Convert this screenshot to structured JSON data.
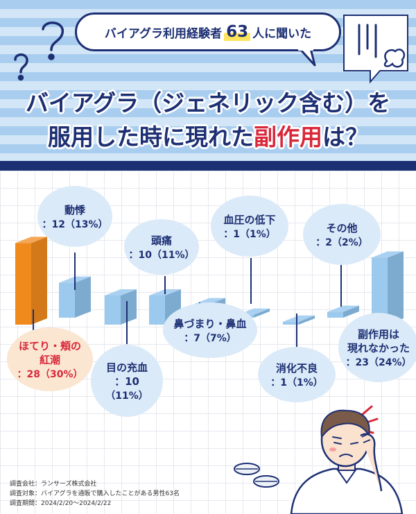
{
  "header": {
    "bubble_prefix": "バイアグラ利用経験者",
    "bubble_count": "63",
    "bubble_suffix": "人に聞いた",
    "headline_line1": "バイアグラ（ジェネリック含む）を",
    "headline_line2_prefix": "服用した時に現れた",
    "headline_line2_accent": "副作用",
    "headline_line2_suffix": "は？"
  },
  "chart_data": {
    "type": "bar",
    "categories": [
      "ほてり・頬の紅潮",
      "動悸",
      "目の充血",
      "頭痛",
      "鼻づまり・鼻血",
      "血圧の低下",
      "消化不良",
      "その他",
      "副作用は現れなかった"
    ],
    "values": [
      28,
      12,
      10,
      10,
      7,
      1,
      1,
      2,
      23
    ],
    "percents": [
      "30%",
      "13%",
      "11%",
      "11%",
      "7%",
      "1%",
      "1%",
      "2%",
      "24%"
    ],
    "labels": [
      {
        "lines": [
          "ほてり・頬の",
          "紅潮"
        ],
        "value_text": "：28（30%）"
      },
      {
        "lines": [
          "動悸"
        ],
        "value_text": "：12（13%）"
      },
      {
        "lines": [
          "目の充血",
          "：10"
        ],
        "value_text": "（11%）"
      },
      {
        "lines": [
          "頭痛"
        ],
        "value_text": "：10（11%）"
      },
      {
        "lines": [
          "鼻づまり・鼻血"
        ],
        "value_text": "：7（7%）"
      },
      {
        "lines": [
          "血圧の低下"
        ],
        "value_text": "：1（1%）"
      },
      {
        "lines": [
          "消化不良"
        ],
        "value_text": "：1（1%）"
      },
      {
        "lines": [
          "その他"
        ],
        "value_text": "：2（2%）"
      },
      {
        "lines": [
          "副作用は",
          "現れなかった"
        ],
        "value_text": "：23（24%）"
      }
    ],
    "colors": {
      "highlight": "#f08a1d",
      "bar": "#8ec2ec",
      "highlight_text": "#d8283a",
      "label_bubble": "#dbeaf8"
    }
  },
  "footer": {
    "company": "調査会社：ランサーズ株式会社",
    "target": "調査対象：バイアグラを通販で購入したことがある男性63名",
    "period": "調査期間：2024/2/20〜2024/2/22"
  },
  "colors": {
    "navy": "#1c2f73",
    "stripe_dark": "#a9cdee",
    "stripe_light": "#d3e6f7"
  },
  "icons": [
    "question-mark-icon",
    "speech-bubble-icon",
    "man-with-headache-illustration",
    "pills-icon"
  ]
}
